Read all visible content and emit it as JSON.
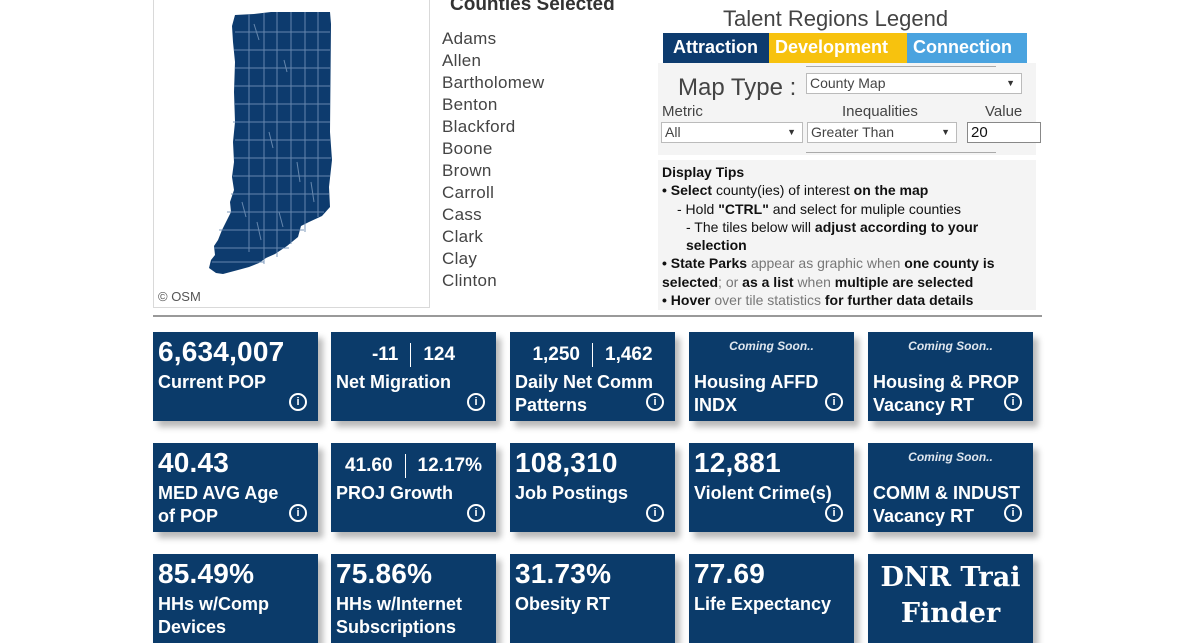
{
  "map": {
    "attribution": "© OSM",
    "fill_color": "#0d3b6e"
  },
  "counties": {
    "title": "Counties Selected",
    "items": [
      "Adams",
      "Allen",
      "Bartholomew",
      "Benton",
      "Blackford",
      "Boone",
      "Brown",
      "Carroll",
      "Cass",
      "Clark",
      "Clay",
      "Clinton"
    ]
  },
  "legend": {
    "title": "Talent Regions Legend",
    "items": [
      {
        "label": "Attraction",
        "color": "#0d3b6e"
      },
      {
        "label": "Development",
        "color": "#f7c20e"
      },
      {
        "label": "Connection",
        "color": "#4aa3df"
      }
    ]
  },
  "controls": {
    "map_type_label": "Map Type :",
    "map_type_value": "County Map",
    "metric_label": "Metric",
    "metric_value": "All",
    "inequalities_label": "Inequalities",
    "inequalities_value": "Greater Than",
    "value_label": "Value",
    "value_value": "20"
  },
  "tips": {
    "title": "Display Tips",
    "l1_a": "• Select ",
    "l1_b": "county(ies) of interest ",
    "l1_c": "on the map",
    "l2_a": "- Hold ",
    "l2_b": "\"CTRL\"",
    "l2_c": " and select for muliple counties",
    "l3_a": "- The tiles below will ",
    "l3_b": "adjust according to your selection",
    "l4_a": "• State Parks ",
    "l4_b": "appear as graphic when ",
    "l4_c": "one county is selected",
    "l4_d": "; or ",
    "l4_e": "as a list ",
    "l4_f": "when ",
    "l4_g": "multiple are selected",
    "l5_a": "• Hover ",
    "l5_b": "over tile statistics ",
    "l5_c": "for further data details"
  },
  "tiles": {
    "current_pop": {
      "value": "6,634,007",
      "label": "Current POP"
    },
    "net_migration": {
      "a": "-11",
      "b": "124",
      "label": "Net Migration"
    },
    "daily_comm": {
      "a": "1,250",
      "b": "1,462",
      "label1": "Daily Net Comm",
      "label2": "Patterns"
    },
    "housing_affd": {
      "soon": "Coming Soon..",
      "label1": "Housing AFFD",
      "label2": "INDX"
    },
    "housing_prop": {
      "soon": "Coming Soon..",
      "label1": "Housing & PROP",
      "label2": "Vacancy RT"
    },
    "med_age": {
      "value": "40.43",
      "label1": "MED AVG Age",
      "label2": "of POP"
    },
    "proj_growth": {
      "a": "41.60",
      "b": "12.17%",
      "label": "PROJ Growth"
    },
    "job_postings": {
      "value": "108,310",
      "label": "Job Postings"
    },
    "violent_crime": {
      "value": "12,881",
      "label": "Violent Crime(s)"
    },
    "comm_indust": {
      "soon": "Coming Soon..",
      "label1": "COMM & INDUST",
      "label2": "Vacancy RT"
    },
    "comp_devices": {
      "value": "85.49%",
      "label1": "HHs w/Comp",
      "label2": "Devices"
    },
    "internet": {
      "value": "75.86%",
      "label1": "HHs w/Internet",
      "label2": "Subscriptions"
    },
    "obesity": {
      "value": "31.73%",
      "label": "Obesity RT"
    },
    "life_exp": {
      "value": "77.69",
      "label": "Life Expectancy"
    },
    "dnr": {
      "line1": "DNR Trai",
      "line2": "Finder"
    }
  },
  "info_glyph": "i"
}
